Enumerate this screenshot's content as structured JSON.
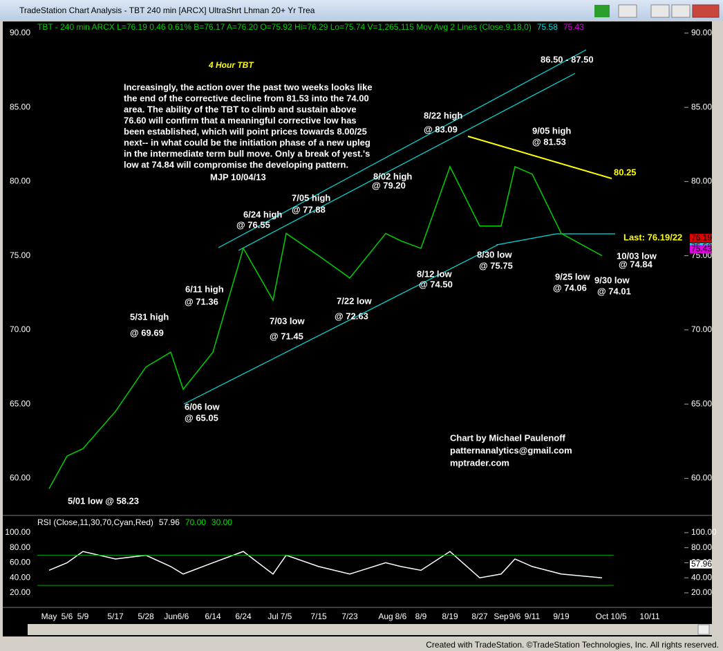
{
  "window": {
    "title": "TradeStation Chart Analysis - TBT 240 min [ARCX] UltraShrt Lhman 20+ Yr Trea",
    "footer": "Created with TradeStation. ©TradeStation Technologies, Inc. All rights reserved."
  },
  "chart_data": [
    {
      "type": "line",
      "title": "4 Hour TBT",
      "info": "TBT - 240 min  ARCX  L=76.19  0.46  0.61%  B=76.17  A=76.20  O=75.92  Hi=76.29  Lo=75.74  V=1,265,115  Mov Avg 2 Lines (Close,9,18,0)",
      "commentary": [
        "Increasingly, the action over the past two weeks looks like",
        "the end of the corrective decline from 81.53 into the 74.00",
        "area.  The ability of the TBT to climb and sustain above",
        "76.60 will confirm that a meaningful corrective low has",
        "been established, which will point prices towards 8.00/25",
        "next-- in what could be the initiation phase of a new upleg",
        "in the intermediate term bull move. Only a break of yest.'s",
        "low at 74.84 will compromise the developing pattern."
      ],
      "signature": "MJP  10/04/13",
      "annotations": [
        "86.50 - 87.50",
        "8/22 high",
        "@ 83.09",
        "9/05 high",
        "@ 81.53",
        "80.25",
        "8/02 high",
        "@ 79.20",
        "7/05 high",
        "@ 77.88",
        "6/24 high",
        "@ 76.55",
        "Last: 76.19/22",
        "8/30 low",
        "@ 75.75",
        "10/03 low",
        "@ 74.84",
        "8/12 low",
        "@ 74.50",
        "9/25 low",
        "@ 74.06",
        "9/30 low",
        "@ 74.01",
        "6/11 high",
        "@ 71.36",
        "7/22 low",
        "@ 72.63",
        "5/31 high",
        "7/03 low",
        "@ 69.69",
        "@ 71.45",
        "6/06 low",
        "@ 65.05",
        "5/01 low  @ 58.23"
      ],
      "credits": [
        "Chart by Michael Paulenoff",
        "patternanalytics@gmail.com",
        "mptrader.com"
      ],
      "categories": [
        "May",
        "5/6",
        "5/9",
        "5/17",
        "5/28",
        "Jun",
        "6/6",
        "6/14",
        "6/24",
        "Jul",
        "7/5",
        "7/15",
        "7/23",
        "Aug",
        "8/6",
        "8/9",
        "8/19",
        "8/27",
        "Sep",
        "9/6",
        "9/11",
        "9/19",
        "Oct",
        "10/5",
        "10/11"
      ],
      "values": [
        59.3,
        61.5,
        62,
        64.5,
        67.5,
        68.5,
        66,
        68.5,
        75.5,
        72,
        76.5,
        75,
        73.5,
        76.5,
        76,
        75.5,
        81,
        77,
        77,
        81,
        80.5,
        76.5,
        75,
        null,
        null
      ],
      "color": "#00d000",
      "price_markers": [
        {
          "value": 76.19,
          "color": "#e00000"
        },
        {
          "value": 75.58,
          "color": "#00e0e0"
        },
        {
          "value": 75.43,
          "color": "#e000e0"
        }
      ],
      "ylim": [
        57.5,
        90.6
      ],
      "yticks": [
        {
          "value": 60,
          "label": "60.00"
        },
        {
          "value": 65,
          "label": "65.00"
        },
        {
          "value": 70,
          "label": "70.00"
        },
        {
          "value": 75,
          "label": "75.00"
        },
        {
          "value": 80,
          "label": "80.00"
        },
        {
          "value": 85,
          "label": "85.00"
        },
        {
          "value": 90,
          "label": "90.00"
        }
      ]
    },
    {
      "type": "line",
      "title": "RSI (Close,11,30,70,Cyan,Red)",
      "values": [
        50,
        60,
        75,
        65,
        70,
        55,
        45,
        60,
        75,
        45,
        70,
        55,
        45,
        60,
        55,
        50,
        75,
        40,
        45,
        65,
        55,
        45,
        40,
        null,
        null
      ],
      "color": "#ffffff",
      "last_value": 57.96,
      "levels": [
        {
          "value": 70,
          "label": "70.00"
        },
        {
          "value": 30,
          "label": "30.00"
        }
      ],
      "ylim": [
        8,
        116.5
      ],
      "yticks": [
        {
          "value": 20,
          "label": "20.00"
        },
        {
          "value": 40,
          "label": "40.00"
        },
        {
          "value": 60,
          "label": "60.00"
        },
        {
          "value": 80,
          "label": "80.00"
        },
        {
          "value": 100,
          "label": "100.00"
        }
      ]
    }
  ]
}
